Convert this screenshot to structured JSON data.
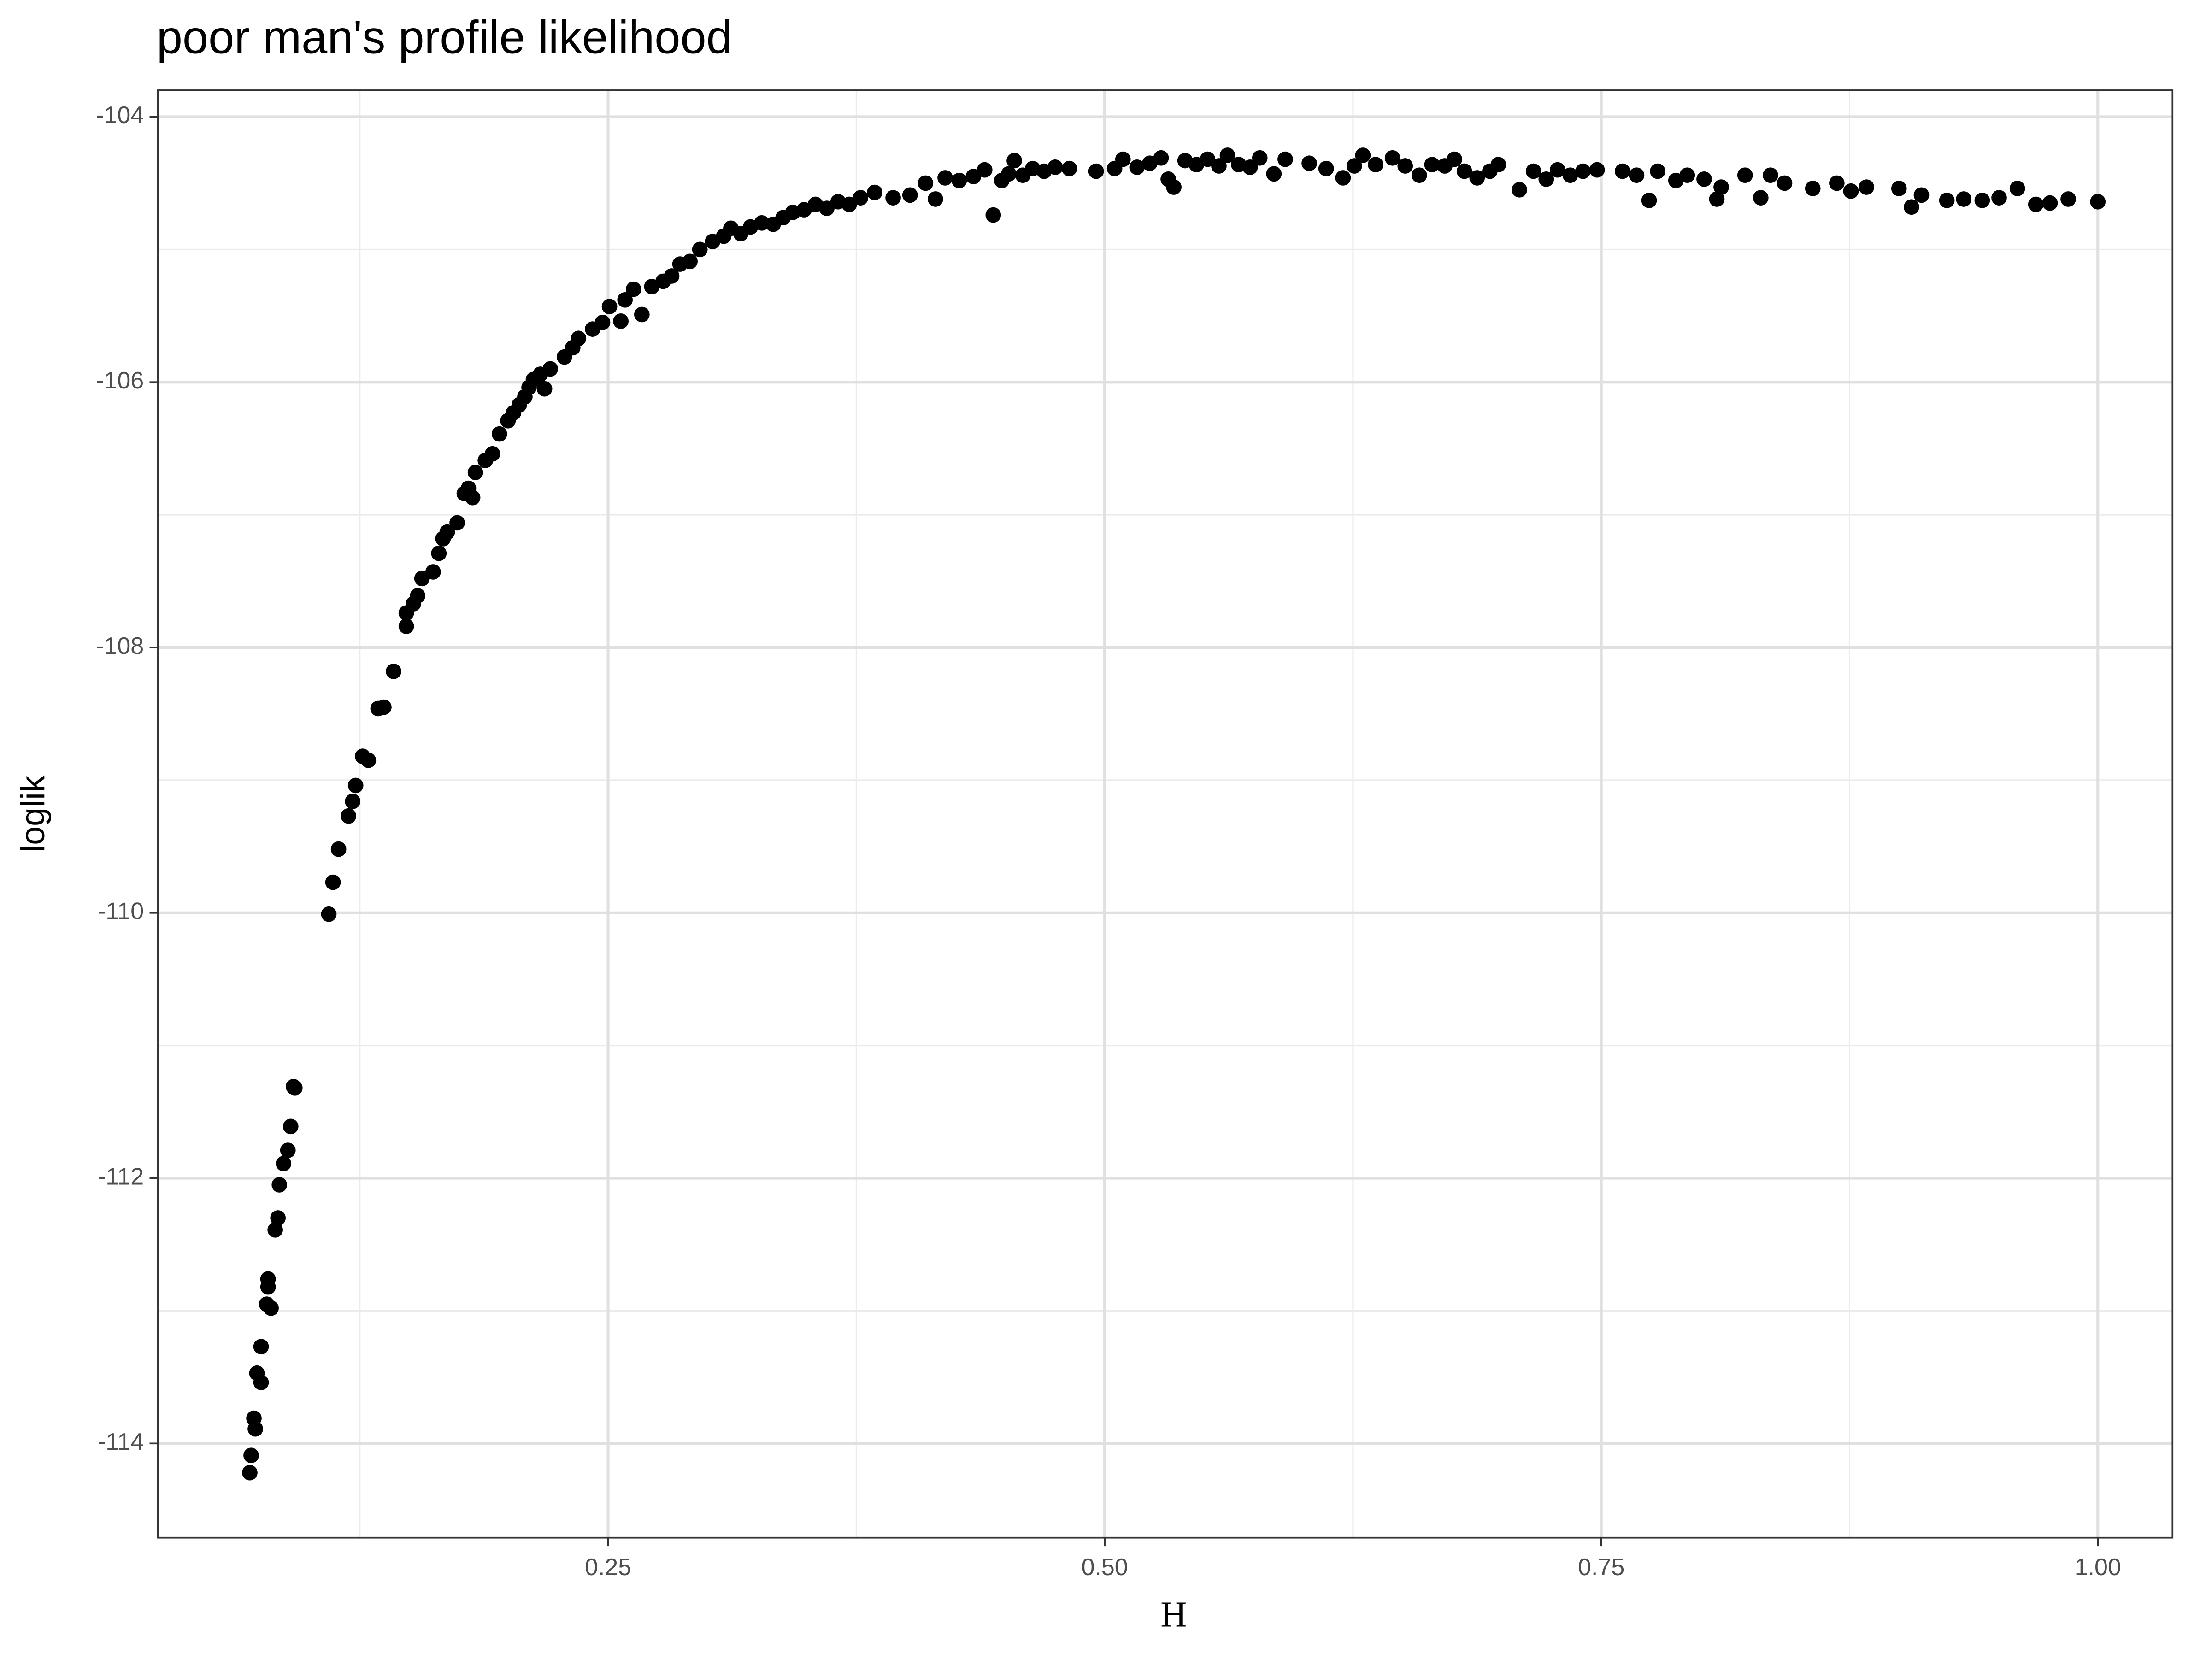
{
  "chart_data": {
    "type": "scatter",
    "title": "poor man's profile likelihood",
    "x_label": "H",
    "y_label": "loglik",
    "color": "#000000",
    "grid": true,
    "xlim": [
      0.0234,
      1.0376
    ],
    "ylim": [
      -114.71,
      -103.8
    ],
    "xticks": [
      0.25,
      {
        "value": 0.5,
        "label": "0.50"
      },
      0.75,
      {
        "value": 1.0,
        "label": "1.00"
      }
    ],
    "yticks": [
      -114,
      -112,
      -110,
      -108,
      -106,
      -104
    ],
    "x": [
      0.0696,
      0.0703,
      0.0717,
      0.0724,
      0.0732,
      0.0753,
      0.0753,
      0.0781,
      0.0788,
      0.0788,
      0.0803,
      0.0824,
      0.0838,
      0.0845,
      0.0866,
      0.0888,
      0.0902,
      0.0916,
      0.0923,
      0.1094,
      0.1115,
      0.1143,
      0.1193,
      0.1214,
      0.1229,
      0.1264,
      0.1293,
      0.1342,
      0.1371,
      0.142,
      0.1484,
      0.1484,
      0.152,
      0.1541,
      0.1563,
      0.1619,
      0.1648,
      0.1669,
      0.169,
      0.174,
      0.1776,
      0.1797,
      0.1818,
      0.1832,
      0.1882,
      0.1918,
      0.1953,
      0.1996,
      0.2024,
      0.2053,
      0.2081,
      0.2102,
      0.2124,
      0.2159,
      0.218,
      0.2209,
      0.228,
      0.2322,
      0.2351,
      0.2422,
      0.2472,
      0.2507,
      0.2564,
      0.2585,
      0.2628,
      0.267,
      0.272,
      0.2777,
      0.282,
      0.2862,
      0.2912,
      0.2962,
      0.3026,
      0.3082,
      0.3118,
      0.3168,
      0.3217,
      0.3274,
      0.3331,
      0.3381,
      0.343,
      0.3487,
      0.3544,
      0.3601,
      0.3658,
      0.3714,
      0.3771,
      0.3842,
      0.3935,
      0.402,
      0.4098,
      0.4148,
      0.4197,
      0.4268,
      0.4339,
      0.4396,
      0.4439,
      0.4482,
      0.4517,
      0.4545,
      0.4588,
      0.4638,
      0.4695,
      0.4751,
      0.4822,
      0.4957,
      0.505,
      0.5092,
      0.5163,
      0.5227,
      0.5284,
      0.532,
      0.5348,
      0.5405,
      0.5462,
      0.5518,
      0.5575,
      0.5618,
      0.5675,
      0.5732,
      0.5781,
      0.5852,
      0.5909,
      0.603,
      0.6115,
      0.62,
      0.6257,
      0.63,
      0.6364,
      0.6449,
      0.6513,
      0.6584,
      0.6648,
      0.6712,
      0.6761,
      0.6811,
      0.6875,
      0.6939,
      0.6982,
      0.7088,
      0.7159,
      0.7223,
      0.728,
      0.7344,
      0.7408,
      0.7479,
      0.7607,
      0.7678,
      0.7741,
      0.7784,
      0.7876,
      0.7933,
      0.8018,
      0.8082,
      0.8104,
      0.8224,
      0.8303,
      0.8352,
      0.8423,
      0.8565,
      0.8686,
      0.8757,
      0.8835,
      0.8999,
      0.9062,
      0.9112,
      0.924,
      0.9325,
      0.9418,
      0.9503,
      0.9595,
      0.9688,
      0.9759,
      0.9851,
      1.0
    ],
    "values": [
      -114.22,
      -114.09,
      -113.81,
      -113.89,
      -113.47,
      -113.54,
      -113.27,
      -112.95,
      -112.82,
      -112.76,
      -112.98,
      -112.39,
      -112.3,
      -112.05,
      -111.89,
      -111.79,
      -111.61,
      -111.31,
      -111.32,
      -110.01,
      -109.77,
      -109.52,
      -109.27,
      -109.16,
      -109.04,
      -108.82,
      -108.85,
      -108.46,
      -108.45,
      -108.18,
      -107.84,
      -107.74,
      -107.67,
      -107.61,
      -107.48,
      -107.43,
      -107.29,
      -107.18,
      -107.13,
      -107.06,
      -106.84,
      -106.8,
      -106.87,
      -106.68,
      -106.59,
      -106.54,
      -106.39,
      -106.29,
      -106.23,
      -106.17,
      -106.11,
      -106.04,
      -105.98,
      -105.94,
      -106.05,
      -105.9,
      -105.81,
      -105.74,
      -105.67,
      -105.6,
      -105.55,
      -105.43,
      -105.54,
      -105.38,
      -105.3,
      -105.49,
      -105.28,
      -105.24,
      -105.2,
      -105.11,
      -105.09,
      -105.0,
      -104.94,
      -104.9,
      -104.84,
      -104.88,
      -104.83,
      -104.8,
      -104.81,
      -104.76,
      -104.72,
      -104.7,
      -104.66,
      -104.69,
      -104.64,
      -104.66,
      -104.61,
      -104.57,
      -104.61,
      -104.59,
      -104.5,
      -104.62,
      -104.46,
      -104.48,
      -104.45,
      -104.4,
      -104.74,
      -104.48,
      -104.43,
      -104.33,
      -104.44,
      -104.39,
      -104.41,
      -104.38,
      -104.39,
      -104.41,
      -104.39,
      -104.32,
      -104.38,
      -104.35,
      -104.31,
      -104.47,
      -104.53,
      -104.33,
      -104.36,
      -104.32,
      -104.37,
      -104.29,
      -104.36,
      -104.38,
      -104.31,
      -104.43,
      -104.32,
      -104.35,
      -104.39,
      -104.46,
      -104.37,
      -104.29,
      -104.36,
      -104.31,
      -104.37,
      -104.44,
      -104.36,
      -104.37,
      -104.32,
      -104.41,
      -104.46,
      -104.41,
      -104.36,
      -104.55,
      -104.41,
      -104.47,
      -104.4,
      -104.44,
      -104.41,
      -104.4,
      -104.41,
      -104.44,
      -104.63,
      -104.41,
      -104.48,
      -104.44,
      -104.47,
      -104.62,
      -104.53,
      -104.44,
      -104.61,
      -104.44,
      -104.5,
      -104.54,
      -104.5,
      -104.56,
      -104.53,
      -104.54,
      -104.68,
      -104.59,
      -104.63,
      -104.62,
      -104.63,
      -104.61,
      -104.54,
      -104.66,
      -104.65,
      -104.62,
      -104.64
    ]
  }
}
